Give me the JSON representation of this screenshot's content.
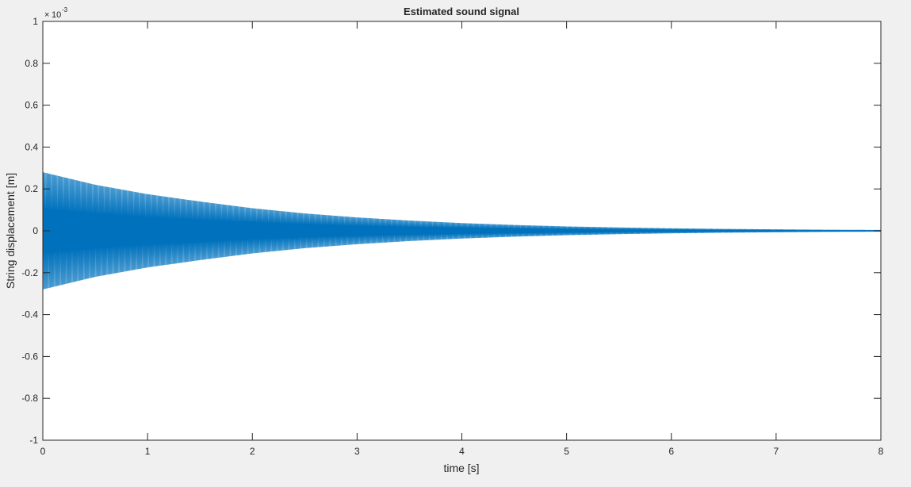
{
  "chart_data": {
    "type": "line",
    "title": "Estimated sound signal",
    "xlabel": "time [s]",
    "ylabel": "String displacement [m]",
    "exponent_label": "10",
    "exponent_value": "-3",
    "xlim": [
      0,
      8
    ],
    "ylim": [
      -0.001,
      0.001
    ],
    "xticks": [
      0,
      1,
      2,
      3,
      4,
      5,
      6,
      7,
      8
    ],
    "xtick_labels": [
      "0",
      "1",
      "2",
      "3",
      "4",
      "5",
      "6",
      "7",
      "8"
    ],
    "yticks": [
      -0.001,
      -0.0008,
      -0.0006,
      -0.0004,
      -0.0002,
      0,
      0.0002,
      0.0004,
      0.0006,
      0.0008,
      0.001
    ],
    "ytick_labels": [
      "-1",
      "-0.8",
      "-0.6",
      "-0.4",
      "-0.2",
      "0",
      "0.2",
      "0.4",
      "0.6",
      "0.8",
      "1"
    ],
    "grid": false,
    "series": [
      {
        "color": "#0072bd",
        "style": "decaying oscillation",
        "envelope_time": [
          0,
          0.5,
          1,
          1.5,
          2,
          2.5,
          3,
          3.5,
          4,
          4.5,
          5,
          5.5,
          6,
          6.5,
          7,
          7.5,
          8
        ],
        "envelope_amplitude": [
          0.00028,
          0.00022,
          0.000175,
          0.00014,
          0.000108,
          8.3e-05,
          6.4e-05,
          4.9e-05,
          3.7e-05,
          2.8e-05,
          2.1e-05,
          1.6e-05,
          1.2e-05,
          9e-06,
          7e-06,
          5e-06,
          4e-06
        ]
      }
    ]
  }
}
